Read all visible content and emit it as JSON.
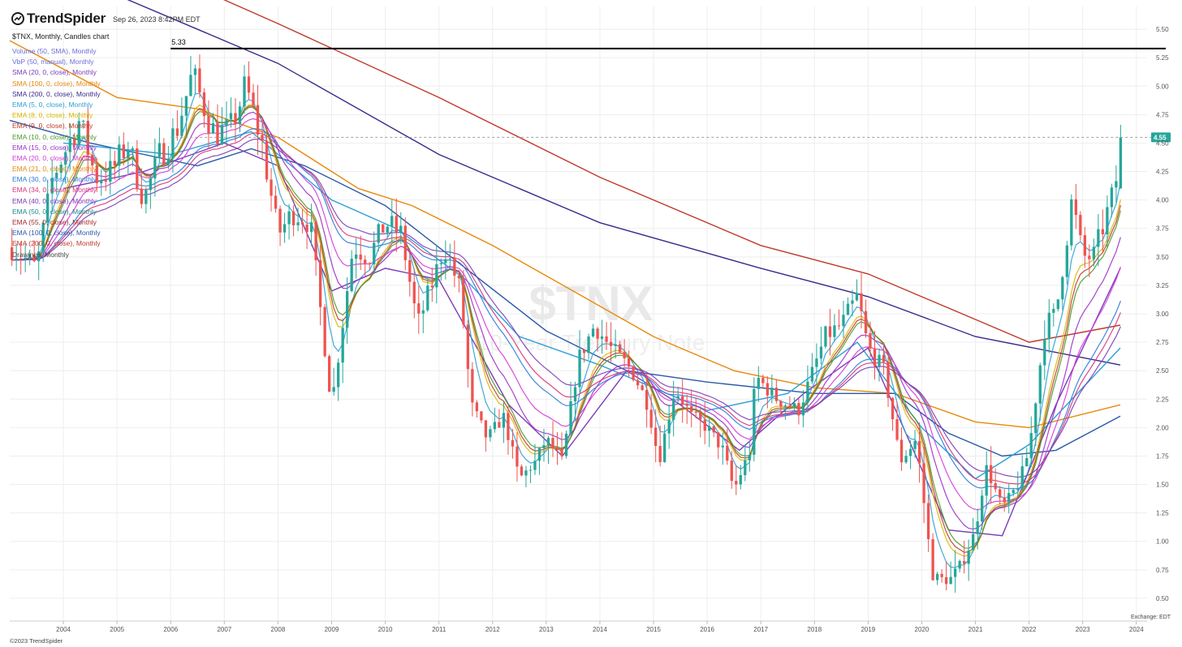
{
  "header": {
    "logo_text": "TrendSpider",
    "timestamp": "Sep 26, 2023 8:42PM EDT"
  },
  "chart_title": "$TNX, Monthly, Candles chart",
  "legend": [
    {
      "label": "Volume (50, SMA), Monthly",
      "color": "#6a6fd6"
    },
    {
      "label": "VbP (50, manual), Monthly",
      "color": "#6a6fd6"
    },
    {
      "label": "SMA (20, 0, close), Monthly",
      "color": "#7a3db8"
    },
    {
      "label": "SMA (100, 0, close), Monthly",
      "color": "#e8890c"
    },
    {
      "label": "SMA (200, 0, close), Monthly",
      "color": "#3a2a8c"
    },
    {
      "label": "EMA (5, 0, close), Monthly",
      "color": "#2ca0d8"
    },
    {
      "label": "EMA (8, 0, close), Monthly",
      "color": "#d6b800"
    },
    {
      "label": "EMA (9, 0, close), Monthly",
      "color": "#c0392b"
    },
    {
      "label": "EMA (10, 0, close), Monthly",
      "color": "#4a9a2a"
    },
    {
      "label": "EMA (15, 0, close), Monthly",
      "color": "#9b2fc8"
    },
    {
      "label": "EMA (20, 0, close), Monthly",
      "color": "#d63ad6"
    },
    {
      "label": "EMA (21, 0, close), Monthly",
      "color": "#e8890c"
    },
    {
      "label": "EMA (30, 0, close), Monthly",
      "color": "#2c7ad8"
    },
    {
      "label": "EMA (34, 0, close), Monthly",
      "color": "#d6357a"
    },
    {
      "label": "EMA (40, 0, close), Monthly",
      "color": "#7a3db8"
    },
    {
      "label": "EMA (50, 0, close), Monthly",
      "color": "#1d8a8a"
    },
    {
      "label": "EMA (55, 0, close), Monthly",
      "color": "#a52a2a"
    },
    {
      "label": "EMA (100, 0, close), Monthly",
      "color": "#2a5aa8"
    },
    {
      "label": "EMA (200, 0, close), Monthly",
      "color": "#c0392b"
    },
    {
      "label": "Drawings, Monthly",
      "color": "#444444"
    }
  ],
  "footer_text": "©2023 TrendSpider",
  "exchange_text": "Exchange: EDT",
  "colors": {
    "up": "#26a69a",
    "down": "#ef5350",
    "grid": "#eeeeee",
    "axis_text": "#555555",
    "last_price_bg": "#26a69a"
  },
  "chart_data": {
    "type": "candlestick",
    "symbol": "$TNX",
    "subtitle": "10-Year Treasury Note",
    "timeframe": "Monthly",
    "y_ticks": [
      0.5,
      0.75,
      1.0,
      1.25,
      1.5,
      1.75,
      2.0,
      2.25,
      2.5,
      2.75,
      3.0,
      3.25,
      3.5,
      3.75,
      4.0,
      4.25,
      4.5,
      4.75,
      5.0,
      5.25,
      5.5
    ],
    "x_ticks": [
      "2004",
      "2005",
      "2006",
      "2007",
      "2008",
      "2009",
      "2010",
      "2011",
      "2012",
      "2013",
      "2014",
      "2015",
      "2016",
      "2017",
      "2018",
      "2019",
      "2020",
      "2021",
      "2022",
      "2023",
      "2024"
    ],
    "ylim": [
      0.3,
      5.7
    ],
    "xlim": [
      2003.0,
      2024.2
    ],
    "horizontal_line": {
      "value": 5.33,
      "label": "5.33"
    },
    "last_price": {
      "value": 4.55,
      "label": "4.55"
    },
    "close_path": [
      [
        2003.0,
        3.6
      ],
      [
        2003.5,
        3.4
      ],
      [
        2003.8,
        4.2
      ],
      [
        2004.3,
        4.7
      ],
      [
        2004.6,
        4.2
      ],
      [
        2004.9,
        4.25
      ],
      [
        2005.2,
        4.5
      ],
      [
        2005.5,
        4.0
      ],
      [
        2005.8,
        4.4
      ],
      [
        2006.1,
        4.6
      ],
      [
        2006.4,
        5.1
      ],
      [
        2006.8,
        4.6
      ],
      [
        2007.1,
        4.6
      ],
      [
        2007.4,
        5.0
      ],
      [
        2007.7,
        4.5
      ],
      [
        2008.0,
        3.7
      ],
      [
        2008.3,
        3.9
      ],
      [
        2008.6,
        3.8
      ],
      [
        2008.9,
        2.6
      ],
      [
        2009.0,
        2.2
      ],
      [
        2009.2,
        2.9
      ],
      [
        2009.4,
        3.6
      ],
      [
        2009.7,
        3.5
      ],
      [
        2010.0,
        3.8
      ],
      [
        2010.3,
        3.7
      ],
      [
        2010.6,
        2.9
      ],
      [
        2010.9,
        3.3
      ],
      [
        2011.1,
        3.6
      ],
      [
        2011.4,
        3.2
      ],
      [
        2011.6,
        2.2
      ],
      [
        2011.9,
        1.9
      ],
      [
        2012.2,
        2.1
      ],
      [
        2012.5,
        1.55
      ],
      [
        2012.8,
        1.7
      ],
      [
        2013.0,
        1.9
      ],
      [
        2013.3,
        1.7
      ],
      [
        2013.6,
        2.6
      ],
      [
        2013.9,
        2.9
      ],
      [
        2014.2,
        2.7
      ],
      [
        2014.6,
        2.5
      ],
      [
        2014.9,
        2.2
      ],
      [
        2015.1,
        1.7
      ],
      [
        2015.4,
        2.35
      ],
      [
        2015.7,
        2.1
      ],
      [
        2016.0,
        2.0
      ],
      [
        2016.3,
        1.8
      ],
      [
        2016.5,
        1.45
      ],
      [
        2016.8,
        1.8
      ],
      [
        2016.9,
        2.45
      ],
      [
        2017.3,
        2.25
      ],
      [
        2017.7,
        2.15
      ],
      [
        2017.9,
        2.4
      ],
      [
        2018.2,
        2.8
      ],
      [
        2018.5,
        2.9
      ],
      [
        2018.8,
        3.15
      ],
      [
        2019.0,
        2.7
      ],
      [
        2019.3,
        2.5
      ],
      [
        2019.6,
        1.7
      ],
      [
        2019.9,
        1.9
      ],
      [
        2020.0,
        1.5
      ],
      [
        2020.2,
        0.7
      ],
      [
        2020.5,
        0.65
      ],
      [
        2020.8,
        0.85
      ],
      [
        2021.0,
        1.1
      ],
      [
        2021.2,
        1.65
      ],
      [
        2021.5,
        1.3
      ],
      [
        2021.8,
        1.5
      ],
      [
        2022.0,
        1.8
      ],
      [
        2022.3,
        2.9
      ],
      [
        2022.5,
        3.0
      ],
      [
        2022.8,
        4.0
      ],
      [
        2023.0,
        3.5
      ],
      [
        2023.2,
        3.5
      ],
      [
        2023.4,
        3.8
      ],
      [
        2023.6,
        4.1
      ],
      [
        2023.73,
        4.55
      ]
    ],
    "ma_lines": [
      {
        "name": "SMA 200",
        "color": "#3a2a8c",
        "points": [
          [
            2005.0,
            5.8
          ],
          [
            2008.0,
            5.2
          ],
          [
            2011.0,
            4.4
          ],
          [
            2014.0,
            3.8
          ],
          [
            2017.0,
            3.4
          ],
          [
            2019.0,
            3.15
          ],
          [
            2021.0,
            2.8
          ],
          [
            2023.7,
            2.55
          ]
        ]
      },
      {
        "name": "EMA 200",
        "color": "#c0392b",
        "points": [
          [
            2006.8,
            5.8
          ],
          [
            2008.0,
            5.55
          ],
          [
            2011.0,
            4.9
          ],
          [
            2014.0,
            4.2
          ],
          [
            2017.0,
            3.6
          ],
          [
            2019.0,
            3.35
          ],
          [
            2021.0,
            2.95
          ],
          [
            2022.0,
            2.75
          ],
          [
            2023.7,
            2.9
          ]
        ]
      },
      {
        "name": "SMA 100",
        "color": "#e8890c",
        "points": [
          [
            2003.0,
            5.4
          ],
          [
            2005.0,
            4.9
          ],
          [
            2006.5,
            4.8
          ],
          [
            2008.0,
            4.55
          ],
          [
            2009.5,
            4.1
          ],
          [
            2010.5,
            3.95
          ],
          [
            2012.0,
            3.6
          ],
          [
            2013.5,
            3.2
          ],
          [
            2015.0,
            2.8
          ],
          [
            2016.5,
            2.5
          ],
          [
            2018.0,
            2.35
          ],
          [
            2019.5,
            2.3
          ],
          [
            2021.0,
            2.05
          ],
          [
            2022.0,
            2.0
          ],
          [
            2023.7,
            2.2
          ]
        ]
      },
      {
        "name": "EMA 100",
        "color": "#2a5aa8",
        "points": [
          [
            2003.0,
            4.7
          ],
          [
            2004.5,
            4.5
          ],
          [
            2006.5,
            4.3
          ],
          [
            2007.5,
            4.45
          ],
          [
            2008.5,
            4.3
          ],
          [
            2010.0,
            3.95
          ],
          [
            2011.5,
            3.4
          ],
          [
            2013.0,
            2.85
          ],
          [
            2014.5,
            2.5
          ],
          [
            2016.0,
            2.4
          ],
          [
            2018.0,
            2.3
          ],
          [
            2019.5,
            2.3
          ],
          [
            2020.5,
            1.95
          ],
          [
            2021.5,
            1.75
          ],
          [
            2022.5,
            1.8
          ],
          [
            2023.7,
            2.1
          ]
        ]
      },
      {
        "name": "EMA 55",
        "color": "#2ca0d8",
        "points": [
          [
            2004.0,
            4.5
          ],
          [
            2006.0,
            4.4
          ],
          [
            2007.5,
            4.6
          ],
          [
            2009.0,
            4.0
          ],
          [
            2010.2,
            3.75
          ],
          [
            2011.5,
            3.3
          ],
          [
            2012.5,
            2.8
          ],
          [
            2014.0,
            2.55
          ],
          [
            2016.0,
            2.15
          ],
          [
            2017.5,
            2.3
          ],
          [
            2018.8,
            2.75
          ],
          [
            2020.0,
            2.0
          ],
          [
            2021.0,
            1.55
          ],
          [
            2022.0,
            1.85
          ],
          [
            2023.7,
            2.7
          ]
        ]
      },
      {
        "name": "SMA 20",
        "color": "#7a3db8",
        "points": [
          [
            2004.0,
            4.1
          ],
          [
            2005.5,
            4.25
          ],
          [
            2007.0,
            4.5
          ],
          [
            2008.0,
            4.3
          ],
          [
            2009.0,
            3.2
          ],
          [
            2010.0,
            3.4
          ],
          [
            2011.0,
            3.3
          ],
          [
            2012.3,
            2.2
          ],
          [
            2013.3,
            1.75
          ],
          [
            2014.5,
            2.5
          ],
          [
            2015.5,
            2.2
          ],
          [
            2016.6,
            1.8
          ],
          [
            2017.8,
            2.3
          ],
          [
            2019.0,
            2.7
          ],
          [
            2020.5,
            1.1
          ],
          [
            2021.5,
            1.05
          ],
          [
            2022.5,
            2.2
          ],
          [
            2023.7,
            3.4
          ]
        ]
      }
    ]
  }
}
